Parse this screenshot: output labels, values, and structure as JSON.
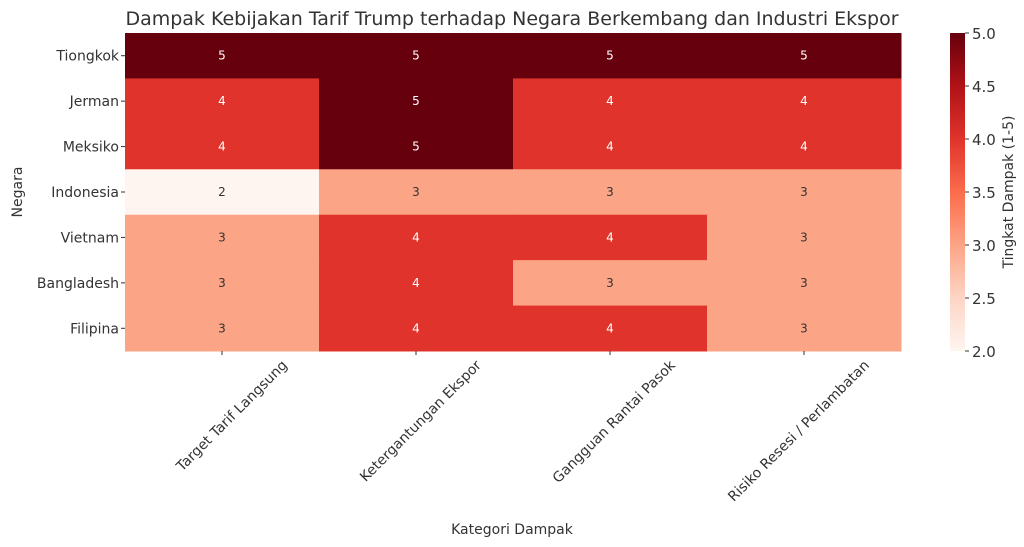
{
  "chart_data": {
    "type": "heatmap",
    "title": "Dampak Kebijakan Tarif Trump terhadap Negara Berkembang dan Industri Ekspor",
    "xlabel": "Kategori Dampak",
    "ylabel": "Negara",
    "x_categories": [
      "Target Tarif Langsung",
      "Ketergantungan Ekspor",
      "Gangguan Rantai Pasok",
      "Risiko Resesi / Perlambatan"
    ],
    "y_categories": [
      "Tiongkok",
      "Jerman",
      "Meksiko",
      "Indonesia",
      "Vietnam",
      "Bangladesh",
      "Filipina"
    ],
    "values": [
      [
        5,
        5,
        5,
        5
      ],
      [
        4,
        5,
        4,
        4
      ],
      [
        4,
        5,
        4,
        4
      ],
      [
        2,
        3,
        3,
        3
      ],
      [
        3,
        4,
        4,
        3
      ],
      [
        3,
        4,
        3,
        3
      ],
      [
        3,
        4,
        4,
        3
      ]
    ],
    "colorbar": {
      "label": "Tingkat Dampak (1-5)",
      "range": [
        2.0,
        5.0
      ],
      "ticks": [
        "2.0",
        "2.5",
        "3.0",
        "3.5",
        "4.0",
        "4.5",
        "5.0"
      ],
      "colormap": "Reds"
    },
    "colors": {
      "2": "#fff5f0",
      "3": "#fca486",
      "4": "#e0332b",
      "5": "#67000d"
    },
    "annotation_colors": {
      "light": "#ffffff",
      "dark": "#333333"
    }
  }
}
